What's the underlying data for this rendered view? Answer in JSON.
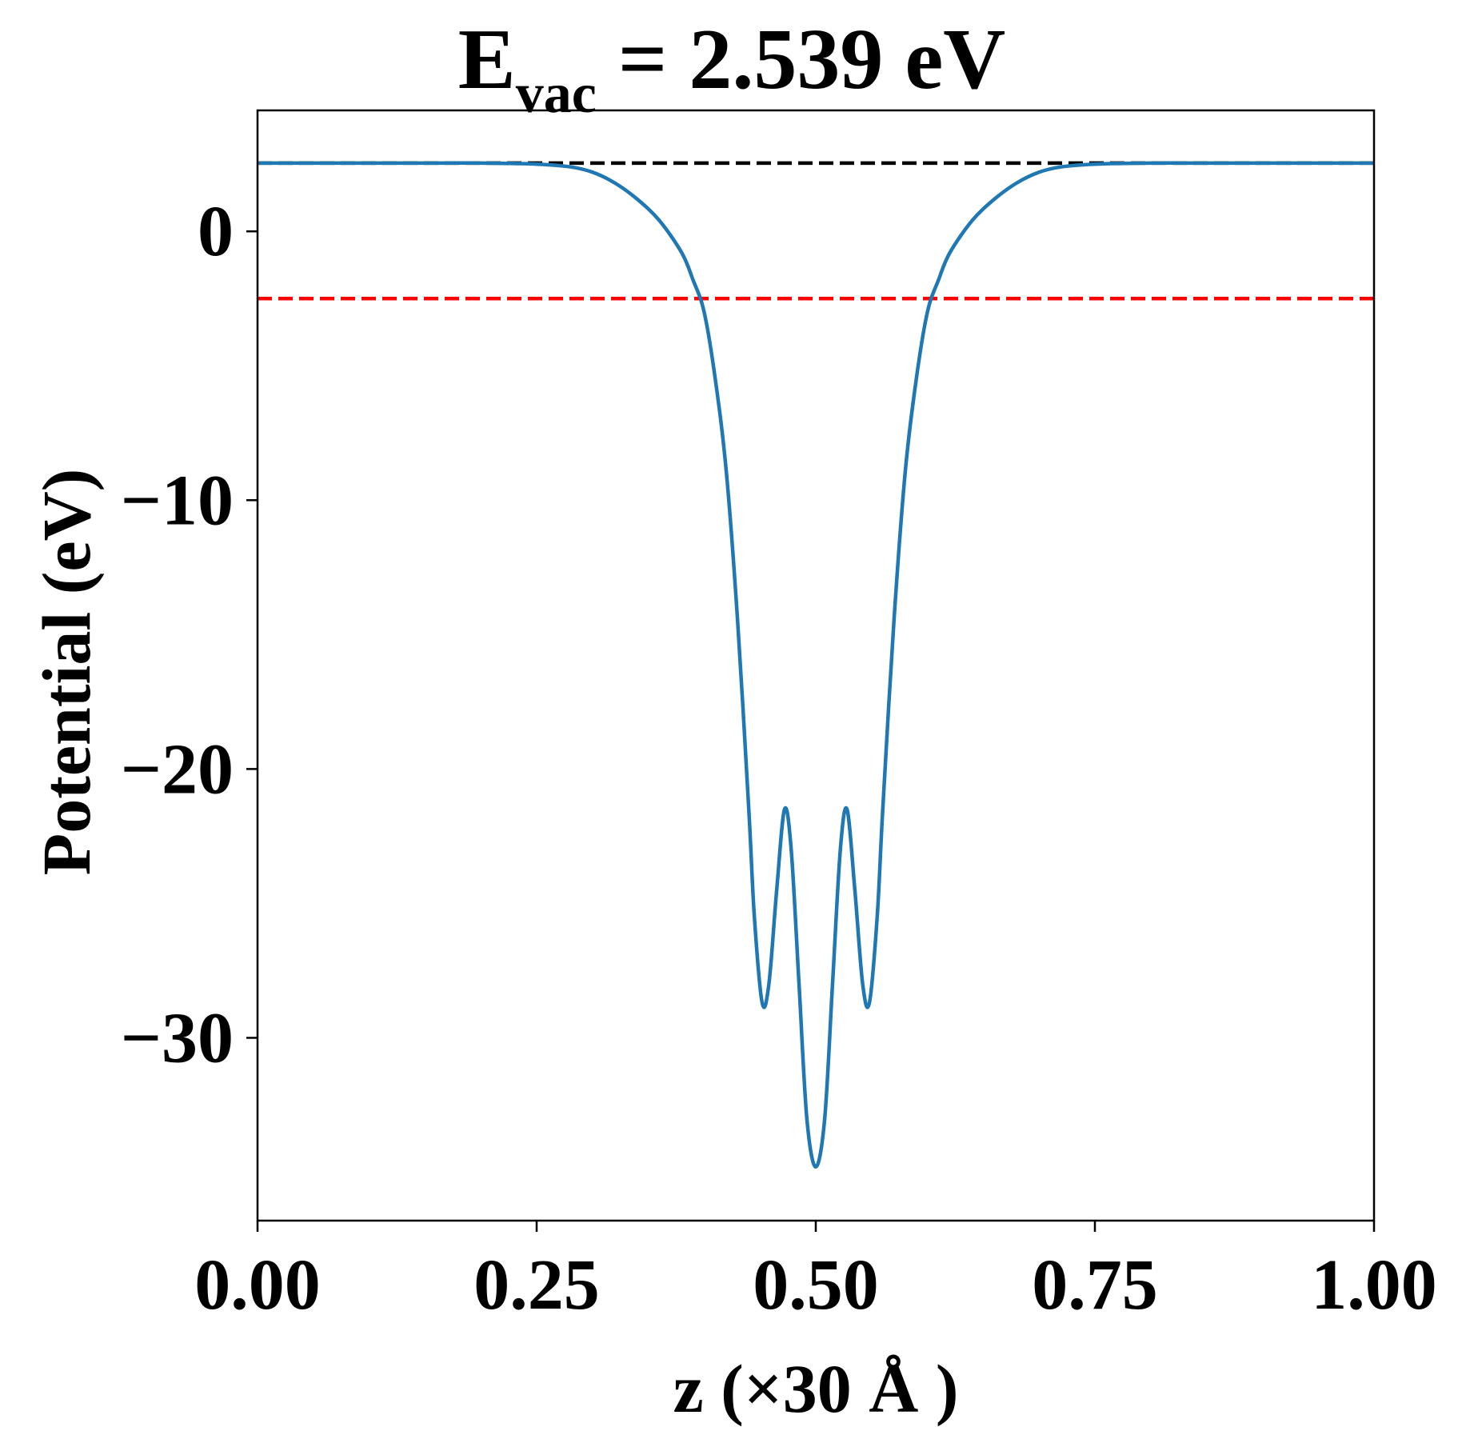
{
  "chart_data": {
    "type": "line",
    "title": "E",
    "title_subscript": "vac",
    "title_rest": " = 2.539 eV",
    "xlabel": "z (×30 Å )",
    "ylabel": "Potential (eV)",
    "xlim": [
      0.0,
      1.0
    ],
    "ylim": [
      -36.8,
      4.5
    ],
    "x_ticks": [
      0.0,
      0.25,
      0.5,
      0.75,
      1.0
    ],
    "x_tick_labels": [
      "0.00",
      "0.25",
      "0.50",
      "0.75",
      "1.00"
    ],
    "y_ticks": [
      0,
      -10,
      -20,
      -30
    ],
    "y_tick_labels": [
      "0",
      "−10",
      "−20",
      "−30"
    ],
    "grid": false,
    "legend": null,
    "hlines": [
      {
        "y": 2.539,
        "color": "#000000",
        "style": "dashed",
        "x_range": [
          0.0,
          1.0
        ]
      },
      {
        "y": -2.5,
        "color": "#ff0000",
        "style": "dashed",
        "x_range": [
          0.0,
          1.0
        ]
      }
    ],
    "series": [
      {
        "color": "#1f77b4",
        "points": [
          [
            0.0,
            2.54
          ],
          [
            0.05,
            2.54
          ],
          [
            0.1,
            2.54
          ],
          [
            0.15,
            2.54
          ],
          [
            0.2,
            2.54
          ],
          [
            0.25,
            2.5
          ],
          [
            0.28,
            2.4
          ],
          [
            0.3,
            2.2
          ],
          [
            0.32,
            1.8
          ],
          [
            0.34,
            1.2
          ],
          [
            0.36,
            0.4
          ],
          [
            0.38,
            -0.8
          ],
          [
            0.39,
            -1.8
          ],
          [
            0.4,
            -3.0
          ],
          [
            0.41,
            -5.5
          ],
          [
            0.42,
            -9.0
          ],
          [
            0.43,
            -14.5
          ],
          [
            0.44,
            -21.5
          ],
          [
            0.445,
            -25.5
          ],
          [
            0.452,
            -28.7
          ],
          [
            0.458,
            -28.0
          ],
          [
            0.465,
            -24.5
          ],
          [
            0.472,
            -21.5
          ],
          [
            0.478,
            -23.0
          ],
          [
            0.485,
            -28.0
          ],
          [
            0.492,
            -33.0
          ],
          [
            0.5,
            -34.8
          ],
          [
            0.508,
            -33.0
          ],
          [
            0.515,
            -28.0
          ],
          [
            0.522,
            -23.0
          ],
          [
            0.528,
            -21.5
          ],
          [
            0.535,
            -24.5
          ],
          [
            0.542,
            -28.0
          ],
          [
            0.548,
            -28.7
          ],
          [
            0.555,
            -25.5
          ],
          [
            0.56,
            -21.5
          ],
          [
            0.57,
            -14.5
          ],
          [
            0.58,
            -9.0
          ],
          [
            0.59,
            -5.5
          ],
          [
            0.6,
            -3.0
          ],
          [
            0.61,
            -1.8
          ],
          [
            0.62,
            -0.8
          ],
          [
            0.64,
            0.4
          ],
          [
            0.66,
            1.2
          ],
          [
            0.68,
            1.8
          ],
          [
            0.7,
            2.2
          ],
          [
            0.72,
            2.4
          ],
          [
            0.75,
            2.5
          ],
          [
            0.8,
            2.54
          ],
          [
            0.85,
            2.54
          ],
          [
            0.9,
            2.54
          ],
          [
            0.95,
            2.54
          ],
          [
            1.0,
            2.54
          ]
        ]
      }
    ]
  }
}
